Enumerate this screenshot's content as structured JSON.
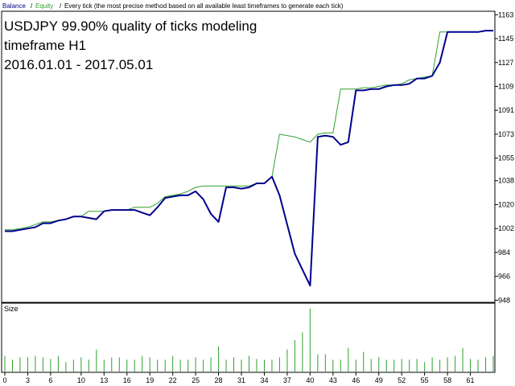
{
  "chart_data": [
    {
      "type": "line",
      "separator": "/",
      "note": "Every tick (the most precise method based on all available least timeframes to generate each tick)",
      "annotations": [
        "USDJPY 99.90% quality of ticks modeling",
        "timeframe H1",
        "2016.01.01 - 2017.05.01"
      ],
      "xlim": [
        0,
        64
      ],
      "ylim": [
        947,
        1165
      ],
      "yticks": [
        948,
        966,
        984,
        1002,
        1020,
        1038,
        1055,
        1073,
        1091,
        1109,
        1127,
        1145,
        1163
      ],
      "series": [
        {
          "name": "Balance",
          "color": "#00008b",
          "values": [
            1000,
            1000,
            1001,
            1002,
            1003,
            1006,
            1006,
            1008,
            1009,
            1011,
            1011,
            1010,
            1009,
            1015,
            1016,
            1016,
            1016,
            1016,
            1014,
            1012,
            1018,
            1025,
            1026,
            1027,
            1027,
            1030,
            1024,
            1013,
            1007,
            1033,
            1033,
            1032,
            1033,
            1036,
            1036,
            1041,
            1027,
            1005,
            983,
            971,
            959,
            1071,
            1072,
            1071,
            1065,
            1067,
            1106,
            1106,
            1107,
            1107,
            1109,
            1110,
            1110,
            1111,
            1115,
            1115,
            1117,
            1127,
            1150,
            1150,
            1150,
            1150,
            1150,
            1151,
            1151
          ]
        },
        {
          "name": "Equity",
          "color": "#2ea02e",
          "values": [
            1001,
            1001,
            1002,
            1003,
            1005,
            1007,
            1007,
            1008,
            1009,
            1011,
            1011,
            1015,
            1015,
            1015,
            1016,
            1016,
            1016,
            1018,
            1018,
            1018,
            1021,
            1026,
            1027,
            1028,
            1030,
            1033,
            1034,
            1034,
            1034,
            1034,
            1034,
            1034,
            1034,
            1036,
            1036,
            1041,
            1073,
            1072,
            1071,
            1069,
            1067,
            1073,
            1074,
            1074,
            1107,
            1107,
            1107,
            1108,
            1108,
            1109,
            1110,
            1110,
            1111,
            1114,
            1115,
            1116,
            1117,
            1150,
            1150,
            1150,
            1150,
            1150,
            1150,
            1151,
            1151
          ]
        }
      ]
    },
    {
      "type": "bar",
      "title": "Size",
      "color": "#2ea02e",
      "xlim": [
        0,
        64
      ],
      "ylim": [
        0,
        85
      ],
      "xticks": [
        0,
        3,
        6,
        10,
        13,
        16,
        19,
        22,
        25,
        28,
        31,
        34,
        37,
        40,
        43,
        46,
        49,
        52,
        55,
        58,
        61
      ],
      "values": [
        20,
        15,
        18,
        18,
        20,
        18,
        16,
        20,
        12,
        15,
        18,
        15,
        28,
        15,
        18,
        18,
        15,
        15,
        20,
        18,
        15,
        15,
        20,
        15,
        15,
        18,
        15,
        18,
        32,
        15,
        18,
        15,
        20,
        16,
        15,
        15,
        18,
        28,
        40,
        50,
        80,
        22,
        22,
        15,
        15,
        30,
        15,
        25,
        16,
        18,
        15,
        15,
        16,
        15,
        16,
        12,
        18,
        15,
        18,
        20,
        30,
        16,
        15,
        18,
        20
      ]
    }
  ]
}
